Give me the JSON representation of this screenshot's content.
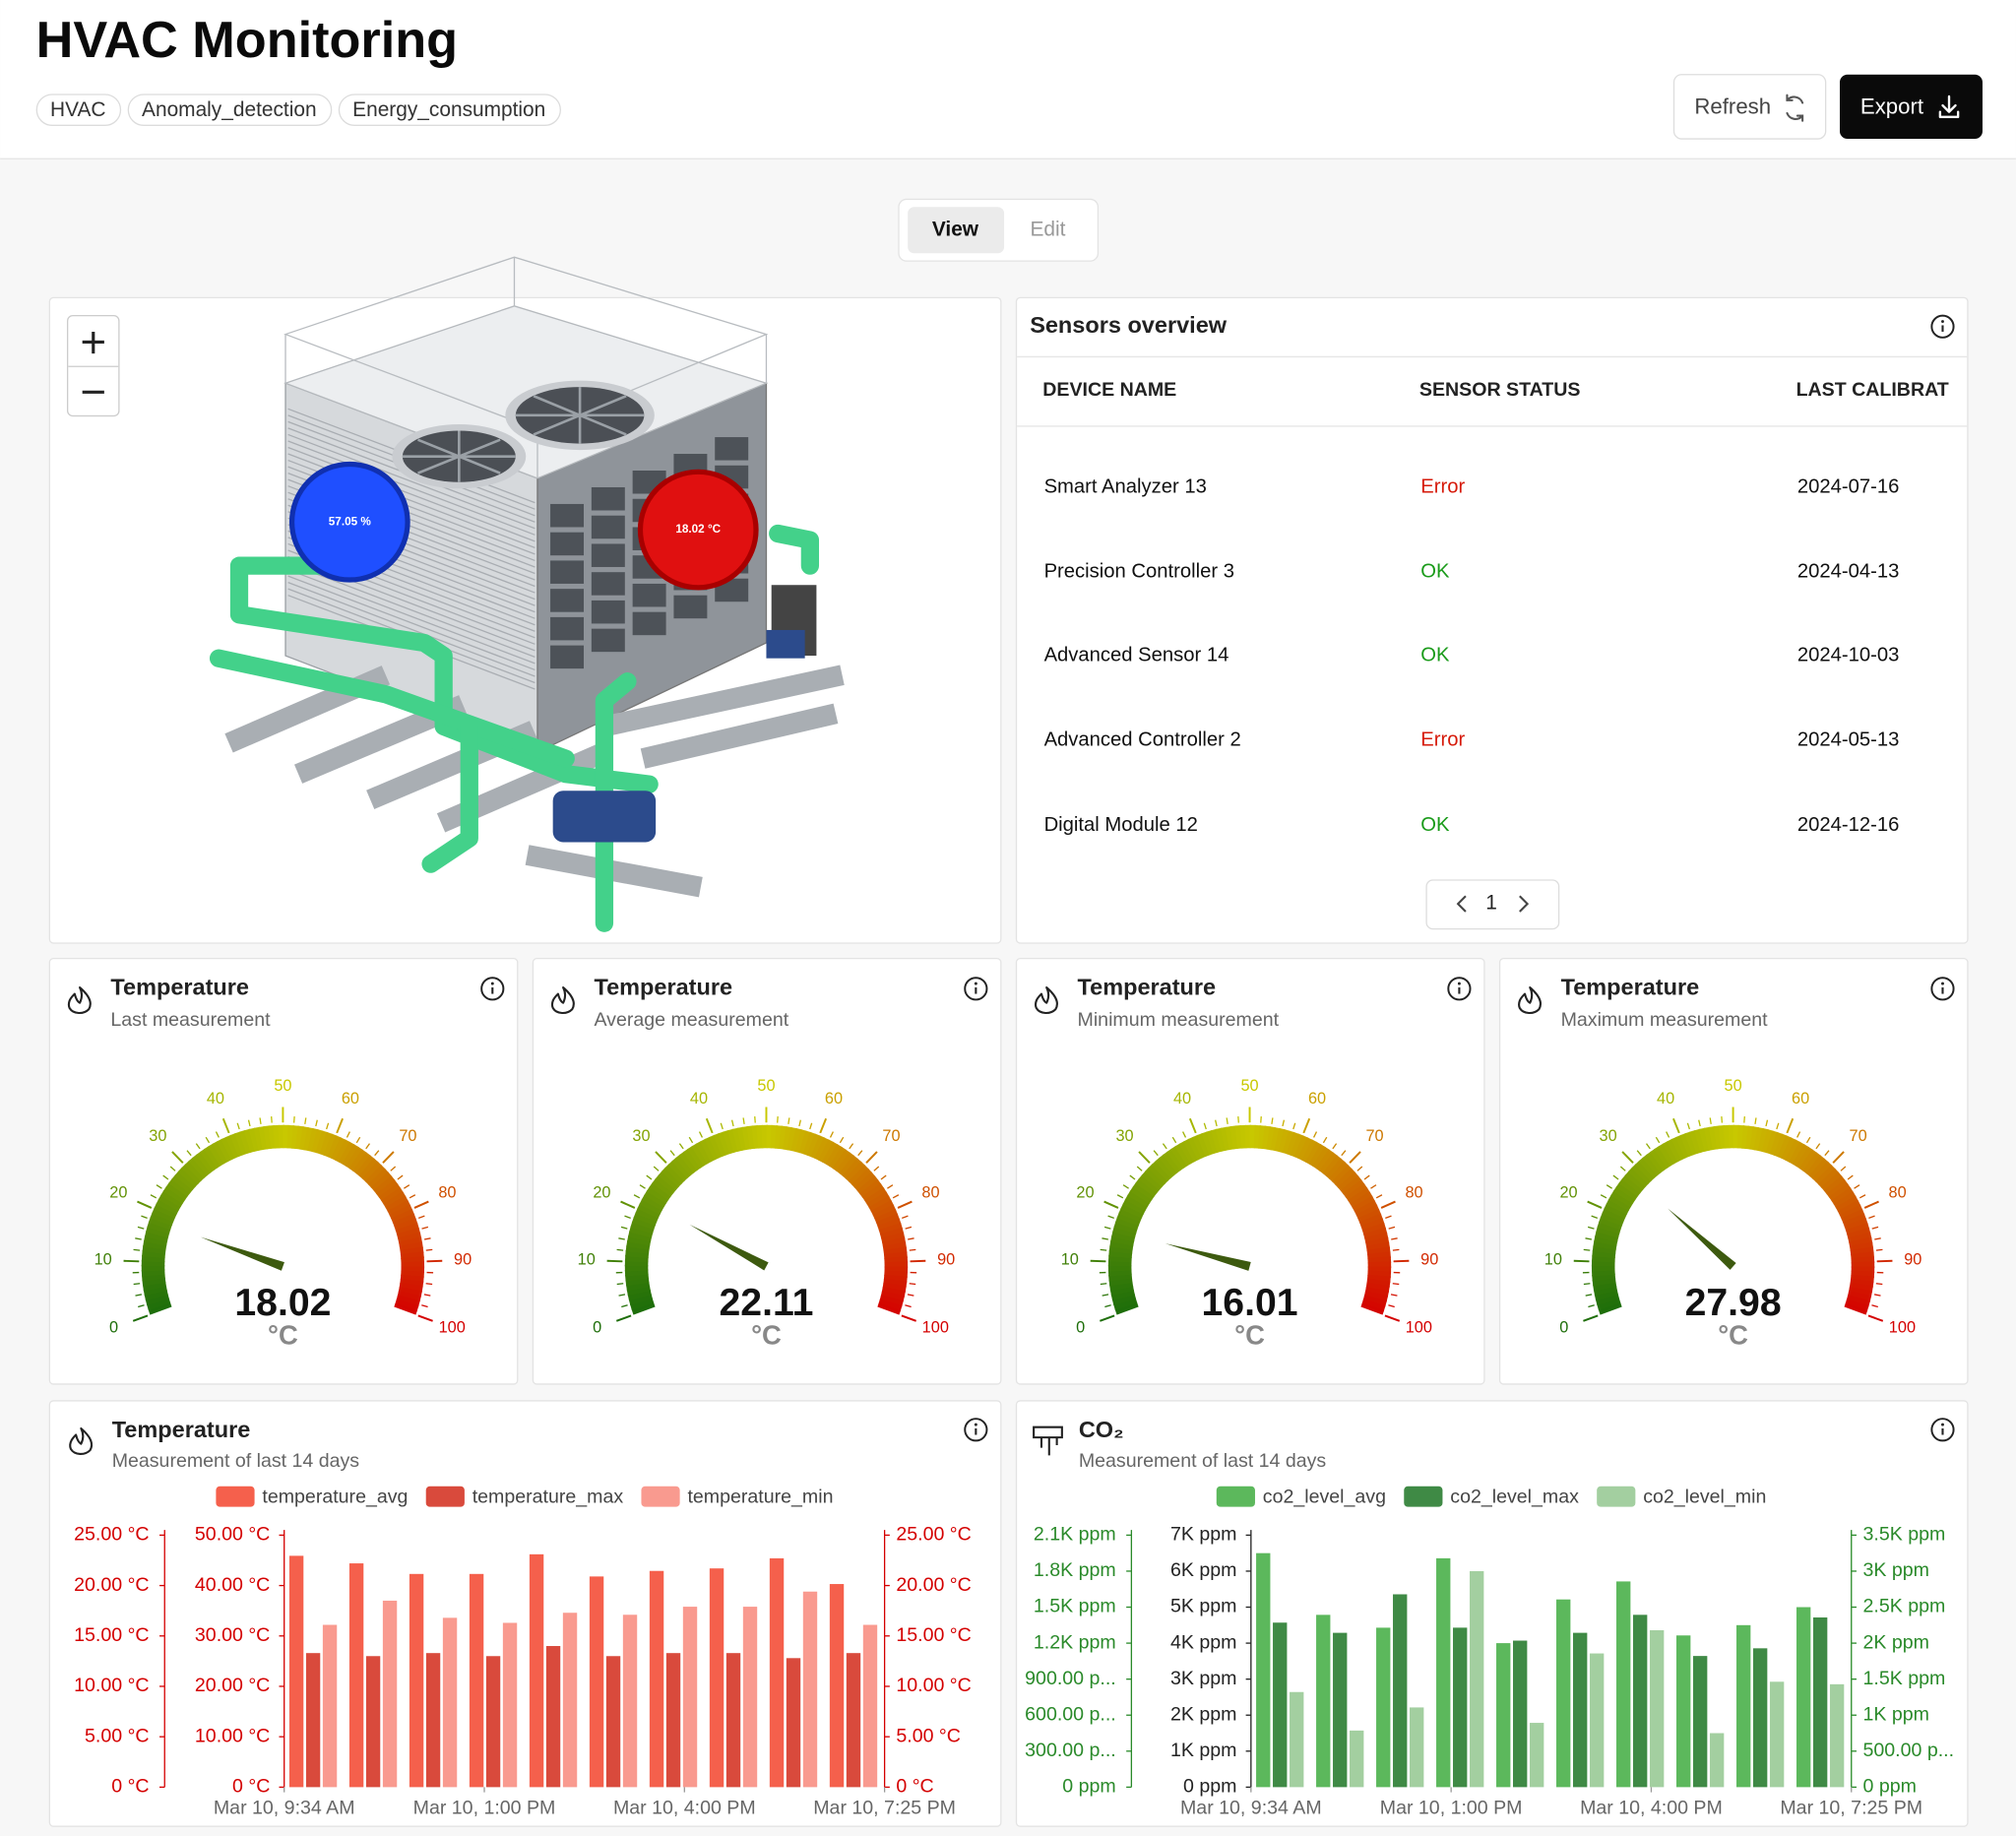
{
  "header": {
    "title": "HVAC Monitoring",
    "tags": [
      "HVAC",
      "Anomaly_detection",
      "Energy_consumption"
    ],
    "buttons": [
      "Refresh",
      "Export"
    ]
  },
  "tabs": [
    "View",
    "Edit"
  ],
  "model": {
    "markers": [
      {
        "label": "57.05 %",
        "color": "#1f4fff"
      },
      {
        "label": "18.02 °C",
        "color": "#e01010"
      }
    ]
  },
  "sensors": {
    "title": "Sensors overview",
    "columns": [
      "DEVICE NAME",
      "SENSOR STATUS",
      "LAST CALIBRAT"
    ],
    "rows": [
      [
        "Smart Analyzer 13",
        "Error",
        "2024-07-16"
      ],
      [
        "Precision Controller 3",
        "OK",
        "2024-04-13"
      ],
      [
        "Advanced Sensor 14",
        "OK",
        "2024-10-03"
      ],
      [
        "Advanced Controller 2",
        "Error",
        "2024-05-13"
      ],
      [
        "Digital Module 12",
        "OK",
        "2024-12-16"
      ]
    ],
    "page": "1"
  },
  "chart_data": [
    {
      "type": "gauge",
      "title": "Temperature",
      "subtitle": "Last measurement",
      "value": 18.02,
      "unit": "°C",
      "ylim": [
        0,
        100
      ],
      "yticks": [
        0,
        10,
        20,
        30,
        40,
        50,
        60,
        70,
        80,
        90,
        100
      ]
    },
    {
      "type": "gauge",
      "title": "Temperature",
      "subtitle": "Average measurement",
      "value": 22.11,
      "unit": "°C",
      "ylim": [
        0,
        100
      ],
      "yticks": [
        0,
        10,
        20,
        30,
        40,
        50,
        60,
        70,
        80,
        90,
        100
      ]
    },
    {
      "type": "gauge",
      "title": "Temperature",
      "subtitle": "Minimum measurement",
      "value": 16.01,
      "unit": "°C",
      "ylim": [
        0,
        100
      ],
      "yticks": [
        0,
        10,
        20,
        30,
        40,
        50,
        60,
        70,
        80,
        90,
        100
      ]
    },
    {
      "type": "gauge",
      "title": "Temperature",
      "subtitle": "Maximum measurement",
      "value": 27.98,
      "unit": "°C",
      "ylim": [
        0,
        100
      ],
      "yticks": [
        0,
        10,
        20,
        30,
        40,
        50,
        60,
        70,
        80,
        90,
        100
      ]
    },
    {
      "type": "bar",
      "title": "Temperature",
      "subtitle": "Measurement of last 14 days",
      "categories": [
        "Mar 10, 9:34 AM",
        null,
        null,
        "Mar 10, 1:00 PM",
        null,
        null,
        "Mar 10, 4:00 PM",
        null,
        null,
        "Mar 10, 7:25 PM"
      ],
      "series": [
        {
          "name": "temperature_avg",
          "color": "#f5604c",
          "axis": "y",
          "values": [
            45.9,
            44.4,
            42.3,
            42.3,
            46.2,
            41.8,
            42.9,
            43.4,
            45.4,
            40.3
          ]
        },
        {
          "name": "temperature_max",
          "color": "#d94a3c",
          "axis": "y3",
          "values": [
            13.3,
            13.0,
            13.3,
            13.0,
            14.0,
            13.0,
            13.3,
            13.3,
            12.8,
            13.3
          ]
        },
        {
          "name": "temperature_min",
          "color": "#f99a8f",
          "axis": "y2",
          "values": [
            16.1,
            18.5,
            16.8,
            16.3,
            17.3,
            17.1,
            17.9,
            17.9,
            19.4,
            16.1
          ]
        }
      ],
      "ylim": [
        0,
        50
      ],
      "yticks": [
        {
          "value": 0,
          "label": "0 °C"
        },
        {
          "value": 10,
          "label": "10.00 °C"
        },
        {
          "value": 20,
          "label": "20.00 °C"
        },
        {
          "value": 30,
          "label": "30.00 °C"
        },
        {
          "value": 40,
          "label": "40.00 °C"
        },
        {
          "value": 50,
          "label": "50.00 °C"
        }
      ],
      "y2lim": [
        0,
        25
      ],
      "y2ticks": [
        {
          "value": 0,
          "label": "0 °C"
        },
        {
          "value": 5,
          "label": "5.00 °C"
        },
        {
          "value": 10,
          "label": "10.00 °C"
        },
        {
          "value": 15,
          "label": "15.00 °C"
        },
        {
          "value": 20,
          "label": "20.00 °C"
        },
        {
          "value": 25,
          "label": "25.00 °C"
        }
      ],
      "y3lim": [
        0,
        25
      ],
      "y3ticks": [
        {
          "value": 0,
          "label": "0 °C"
        },
        {
          "value": 5,
          "label": "5.00 °C"
        },
        {
          "value": 10,
          "label": "10.00 °C"
        },
        {
          "value": 15,
          "label": "15.00 °C"
        },
        {
          "value": 20,
          "label": "20.00 °C"
        },
        {
          "value": 25,
          "label": "25.00 °C"
        }
      ],
      "axis_colors": {
        "y": "#d40000",
        "y2": "#d40000",
        "y3": "#d40000"
      }
    },
    {
      "type": "bar",
      "title": "CO₂",
      "subtitle": "Measurement of last 14 days",
      "categories": [
        "Mar 10, 9:34 AM",
        null,
        null,
        "Mar 10, 1:00 PM",
        null,
        null,
        "Mar 10, 4:00 PM",
        null,
        null,
        "Mar 10, 7:25 PM"
      ],
      "series": [
        {
          "name": "co2_level_avg",
          "color": "#5cb85c",
          "axis": "y",
          "values": [
            6500,
            4786,
            4429,
            6357,
            4000,
            5214,
            5714,
            4214,
            4500,
            5000
          ]
        },
        {
          "name": "co2_level_max",
          "color": "#3f8a45",
          "axis": "y3",
          "values": [
            1371,
            1286,
            1607,
            1329,
            1221,
            1286,
            1436,
            1093,
            1157,
            1414
          ]
        },
        {
          "name": "co2_level_min",
          "color": "#a3cfa0",
          "axis": "y2",
          "values": [
            1321,
            786,
            1107,
            3000,
            893,
            1857,
            2179,
            750,
            1464,
            1429
          ]
        }
      ],
      "ylim": [
        0,
        7000
      ],
      "yticks": [
        {
          "value": 0,
          "label": "0 ppm"
        },
        {
          "value": 1000,
          "label": "1K ppm"
        },
        {
          "value": 2000,
          "label": "2K ppm"
        },
        {
          "value": 3000,
          "label": "3K ppm"
        },
        {
          "value": 4000,
          "label": "4K ppm"
        },
        {
          "value": 5000,
          "label": "5K ppm"
        },
        {
          "value": 6000,
          "label": "6K ppm"
        },
        {
          "value": 7000,
          "label": "7K ppm"
        }
      ],
      "y2lim": [
        0,
        3500
      ],
      "y2ticks": [
        {
          "value": 0,
          "label": "0 ppm"
        },
        {
          "value": 500,
          "label": "500.00 p..."
        },
        {
          "value": 1000,
          "label": "1K ppm"
        },
        {
          "value": 1500,
          "label": "1.5K ppm"
        },
        {
          "value": 2000,
          "label": "2K ppm"
        },
        {
          "value": 2500,
          "label": "2.5K ppm"
        },
        {
          "value": 3000,
          "label": "3K ppm"
        },
        {
          "value": 3500,
          "label": "3.5K ppm"
        }
      ],
      "y3lim": [
        0,
        2100
      ],
      "y3ticks": [
        {
          "value": 0,
          "label": "0 ppm"
        },
        {
          "value": 300,
          "label": "300.00 p..."
        },
        {
          "value": 600,
          "label": "600.00 p..."
        },
        {
          "value": 900,
          "label": "900.00 p..."
        },
        {
          "value": 1200,
          "label": "1.2K ppm"
        },
        {
          "value": 1500,
          "label": "1.5K ppm"
        },
        {
          "value": 1800,
          "label": "1.8K ppm"
        },
        {
          "value": 2100,
          "label": "2.1K ppm"
        }
      ],
      "axis_colors": {
        "y": "#222222",
        "y2": "#2a8a2a",
        "y3": "#2a8a2a"
      }
    }
  ]
}
